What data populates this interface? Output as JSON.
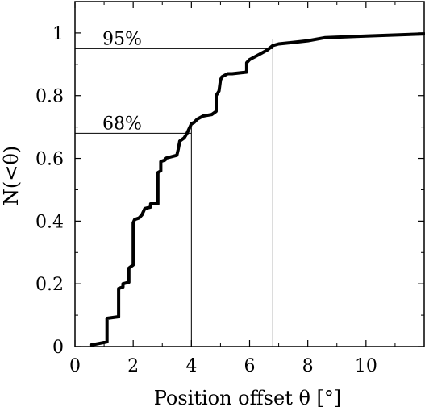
{
  "chart_data": {
    "type": "line",
    "xlabel": "Position offset  θ  [°]",
    "ylabel": "N(<θ)",
    "xlim": [
      0,
      12
    ],
    "ylim": [
      0,
      1.1
    ],
    "x_ticks": [
      0,
      2,
      4,
      6,
      8,
      10
    ],
    "y_ticks": [
      0,
      0.2,
      0.4,
      0.6,
      0.8,
      1
    ],
    "x_tick_labels": [
      "0",
      "2",
      "4",
      "6",
      "8",
      "10"
    ],
    "y_tick_labels": [
      "0",
      "0.2",
      "0.4",
      "0.6",
      "0.8",
      "1"
    ],
    "grid": false,
    "series": [
      {
        "x": [
          0.55,
          1.1,
          1.1,
          1.5,
          1.5,
          1.65,
          1.65,
          1.85,
          1.85,
          2.0,
          2.0,
          2.05,
          2.05,
          2.2,
          2.3,
          2.4,
          2.6,
          2.6,
          2.85,
          2.85,
          2.95,
          2.95,
          3.1,
          3.1,
          3.5,
          3.55,
          3.6,
          3.75,
          3.85,
          4.0,
          4.1,
          4.2,
          4.4,
          4.7,
          4.85,
          4.85,
          4.95,
          5.0,
          5.05,
          5.15,
          5.25,
          5.4,
          5.9,
          5.9,
          6.0,
          6.2,
          6.4,
          6.6,
          6.8,
          7.0,
          7.5,
          8.0,
          8.6,
          10.0,
          12.0
        ],
        "y": [
          0.005,
          0.015,
          0.09,
          0.095,
          0.185,
          0.19,
          0.2,
          0.205,
          0.25,
          0.26,
          0.395,
          0.405,
          0.405,
          0.41,
          0.42,
          0.44,
          0.445,
          0.455,
          0.455,
          0.555,
          0.56,
          0.59,
          0.595,
          0.6,
          0.61,
          0.63,
          0.655,
          0.665,
          0.68,
          0.71,
          0.715,
          0.725,
          0.735,
          0.74,
          0.75,
          0.8,
          0.815,
          0.85,
          0.86,
          0.865,
          0.87,
          0.87,
          0.875,
          0.905,
          0.915,
          0.925,
          0.935,
          0.945,
          0.96,
          0.965,
          0.97,
          0.975,
          0.985,
          0.99,
          0.997
        ]
      }
    ],
    "annotations": [
      {
        "text": "95%",
        "level": 0.95,
        "x_at": 6.8
      },
      {
        "text": "68%",
        "level": 0.68,
        "x_at": 4.0
      }
    ]
  }
}
